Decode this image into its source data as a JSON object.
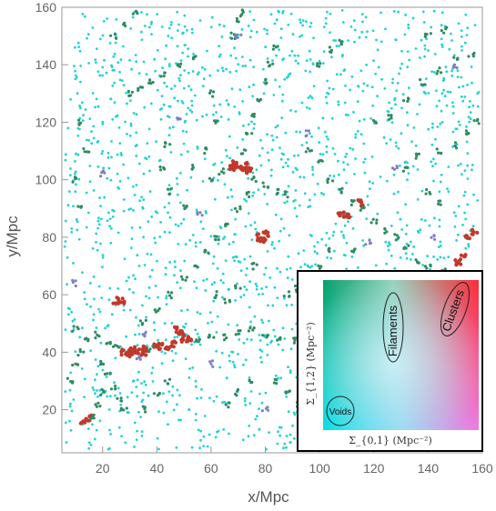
{
  "chart_data": {
    "type": "scatter",
    "xlabel": "x/Mpc",
    "ylabel": "y/Mpc",
    "xlim": [
      5,
      160
    ],
    "ylim": [
      5,
      160
    ],
    "x_ticks": [
      20,
      40,
      60,
      80,
      100,
      120,
      140,
      160
    ],
    "y_ticks": [
      20,
      40,
      60,
      80,
      100,
      120,
      140,
      160
    ],
    "grid": false,
    "legend": {
      "type": "color-map inset",
      "placement": "bottom-right",
      "xlabel": "Σ_{0,1} (Mpc⁻²)",
      "ylabel": "Σ_{1,2} (Mpc⁻²)",
      "regions": [
        "Voids",
        "Filaments",
        "Clusters"
      ]
    },
    "colors": {
      "void": "#22d3d0",
      "filament": "#2e8b63",
      "cluster": "#c0392b",
      "purple": "#7f7fc8"
    },
    "series": [
      {
        "description_key": "clusters",
        "points": [
          [
            29,
            40
          ],
          [
            30,
            40
          ],
          [
            31,
            40
          ],
          [
            32,
            40
          ],
          [
            30,
            39
          ],
          [
            31,
            41
          ],
          [
            33,
            40
          ],
          [
            28,
            40
          ],
          [
            35,
            40
          ],
          [
            36,
            41
          ],
          [
            40,
            42
          ],
          [
            41,
            42
          ],
          [
            44,
            42
          ],
          [
            46,
            43
          ],
          [
            50,
            44
          ],
          [
            51,
            45
          ],
          [
            52,
            44
          ],
          [
            68,
            104
          ],
          [
            70,
            105
          ],
          [
            72,
            104
          ],
          [
            73,
            105
          ],
          [
            74,
            103
          ],
          [
            69,
            106
          ],
          [
            78,
            80
          ],
          [
            80,
            81
          ],
          [
            79,
            79
          ],
          [
            25,
            58
          ],
          [
            27,
            58
          ],
          [
            13,
            16
          ],
          [
            15,
            17
          ],
          [
            47,
            48
          ],
          [
            49,
            47
          ],
          [
            108,
            88
          ],
          [
            110,
            87
          ],
          [
            155,
            80
          ],
          [
            157,
            82
          ],
          [
            151,
            71
          ],
          [
            153,
            73
          ],
          [
            115,
            92
          ]
        ]
      },
      {
        "description_key": "filaments",
        "points": [
          [
            10,
            48
          ],
          [
            14,
            45
          ],
          [
            18,
            46
          ],
          [
            22,
            44
          ],
          [
            25,
            42
          ],
          [
            38,
            41
          ],
          [
            55,
            44
          ],
          [
            60,
            46
          ],
          [
            65,
            45
          ],
          [
            70,
            47
          ],
          [
            75,
            48
          ],
          [
            80,
            46
          ],
          [
            85,
            45
          ],
          [
            90,
            44
          ],
          [
            20,
            36
          ],
          [
            22,
            32
          ],
          [
            24,
            28
          ],
          [
            26,
            24
          ],
          [
            28,
            20
          ],
          [
            16,
            18
          ],
          [
            18,
            22
          ],
          [
            20,
            26
          ],
          [
            35,
            50
          ],
          [
            40,
            55
          ],
          [
            45,
            60
          ],
          [
            50,
            66
          ],
          [
            55,
            70
          ],
          [
            58,
            75
          ],
          [
            62,
            80
          ],
          [
            66,
            85
          ],
          [
            70,
            90
          ],
          [
            74,
            95
          ],
          [
            76,
            100
          ],
          [
            60,
            100
          ],
          [
            64,
            103
          ],
          [
            80,
            98
          ],
          [
            84,
            96
          ],
          [
            88,
            95
          ],
          [
            72,
            110
          ],
          [
            74,
            116
          ],
          [
            76,
            122
          ],
          [
            78,
            128
          ],
          [
            80,
            134
          ],
          [
            82,
            140
          ],
          [
            84,
            146
          ],
          [
            68,
            150
          ],
          [
            70,
            156
          ],
          [
            72,
            158
          ],
          [
            30,
            130
          ],
          [
            34,
            132
          ],
          [
            38,
            134
          ],
          [
            42,
            137
          ],
          [
            48,
            140
          ],
          [
            54,
            142
          ],
          [
            96,
            110
          ],
          [
            100,
            106
          ],
          [
            104,
            100
          ],
          [
            108,
            96
          ],
          [
            112,
            92
          ],
          [
            116,
            90
          ],
          [
            120,
            86
          ],
          [
            124,
            82
          ],
          [
            128,
            80
          ],
          [
            132,
            76
          ],
          [
            136,
            72
          ],
          [
            140,
            70
          ],
          [
            146,
            68
          ],
          [
            150,
            66
          ],
          [
            120,
            120
          ],
          [
            126,
            122
          ],
          [
            132,
            128
          ],
          [
            138,
            134
          ],
          [
            144,
            138
          ],
          [
            150,
            142
          ],
          [
            156,
            144
          ],
          [
            140,
            150
          ],
          [
            146,
            152
          ],
          [
            12,
            120
          ],
          [
            14,
            110
          ],
          [
            10,
            100
          ],
          [
            12,
            90
          ],
          [
            60,
            130
          ],
          [
            62,
            120
          ],
          [
            58,
            110
          ],
          [
            54,
            104
          ],
          [
            44,
            112
          ],
          [
            42,
            104
          ],
          [
            45,
            96
          ],
          [
            50,
            90
          ],
          [
            88,
            60
          ],
          [
            92,
            62
          ],
          [
            96,
            64
          ],
          [
            100,
            70
          ],
          [
            104,
            76
          ],
          [
            112,
            76
          ],
          [
            132,
            104
          ],
          [
            136,
            108
          ],
          [
            144,
            110
          ],
          [
            150,
            112
          ],
          [
            154,
            116
          ],
          [
            158,
            120
          ],
          [
            8,
            30
          ],
          [
            10,
            35
          ],
          [
            12,
            40
          ],
          [
            36,
            20
          ],
          [
            40,
            25
          ],
          [
            44,
            30
          ],
          [
            84,
            30
          ],
          [
            88,
            26
          ],
          [
            92,
            22
          ],
          [
            96,
            20
          ],
          [
            66,
            22
          ],
          [
            70,
            26
          ],
          [
            74,
            30
          ],
          [
            100,
            140
          ],
          [
            104,
            145
          ],
          [
            108,
            148
          ],
          [
            24,
            150
          ],
          [
            28,
            154
          ],
          [
            32,
            158
          ],
          [
            62,
            60
          ],
          [
            66,
            58
          ],
          [
            70,
            62
          ],
          [
            76,
            70
          ],
          [
            140,
            96
          ],
          [
            144,
            92
          ]
        ]
      },
      {
        "description_key": "purple",
        "points": [
          [
            36,
            46
          ],
          [
            33,
            38
          ],
          [
            48,
            122
          ],
          [
            70,
            150
          ],
          [
            128,
            104
          ],
          [
            142,
            80
          ],
          [
            118,
            78
          ],
          [
            96,
            116
          ],
          [
            56,
            88
          ],
          [
            20,
            102
          ],
          [
            104,
            40
          ],
          [
            122,
            52
          ],
          [
            80,
            20
          ],
          [
            140,
            40
          ],
          [
            60,
            36
          ],
          [
            150,
            140
          ],
          [
            10,
            64
          ],
          [
            100,
            60
          ]
        ]
      }
    ],
    "voids_points_count_approx": 1800
  }
}
